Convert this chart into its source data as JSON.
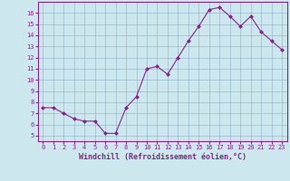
{
  "x": [
    0,
    1,
    2,
    3,
    4,
    5,
    6,
    7,
    8,
    9,
    10,
    11,
    12,
    13,
    14,
    15,
    16,
    17,
    18,
    19,
    20,
    21,
    22,
    23
  ],
  "y": [
    7.5,
    7.5,
    7.0,
    6.5,
    6.3,
    6.3,
    5.2,
    5.2,
    7.5,
    8.5,
    11.0,
    11.2,
    10.5,
    12.0,
    13.5,
    14.8,
    16.3,
    16.5,
    15.7,
    14.8,
    15.7,
    14.3,
    13.5,
    12.7
  ],
  "xlim": [
    -0.5,
    23.5
  ],
  "ylim": [
    4.5,
    17.0
  ],
  "yticks": [
    5,
    6,
    7,
    8,
    9,
    10,
    11,
    12,
    13,
    14,
    15,
    16
  ],
  "xticks": [
    0,
    1,
    2,
    3,
    4,
    5,
    6,
    7,
    8,
    9,
    10,
    11,
    12,
    13,
    14,
    15,
    16,
    17,
    18,
    19,
    20,
    21,
    22,
    23
  ],
  "xlabel": "Windchill (Refroidissement éolien,°C)",
  "line_color": "#882288",
  "marker": "D",
  "marker_size": 2.5,
  "bg_color": "#cce8ee",
  "grid_color": "#99bbcc",
  "spine_color": "#882288",
  "label_color": "#882288",
  "tick_label_color": "#882288",
  "fig_bg": "#cce8ee",
  "tick_fontsize": 5.0,
  "xlabel_fontsize": 6.0
}
